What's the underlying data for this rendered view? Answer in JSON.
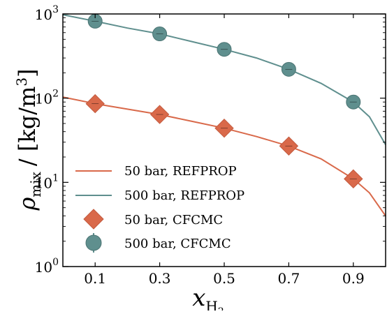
{
  "chart_data": {
    "type": "line",
    "x_axis": {
      "label": "x",
      "label_sub": "H",
      "label_sub_digit": "2",
      "range": [
        0.0,
        1.0
      ],
      "ticks": [
        0.1,
        0.3,
        0.5,
        0.7,
        0.9
      ],
      "tick_labels": [
        "0.1",
        "0.3",
        "0.5",
        "0.7",
        "0.9"
      ]
    },
    "y_axis": {
      "label_main": "ρ",
      "label_sub": "mix",
      "label_units": "/   [kg/m",
      "label_units_exp": "3",
      "label_units_close": "]",
      "scale": "log",
      "range": [
        1,
        1000
      ],
      "ticks": [
        1,
        10,
        100,
        1000
      ],
      "tick_bases": [
        "10",
        "10",
        "10",
        "10"
      ],
      "tick_exponents": [
        "0",
        "1",
        "2",
        "3"
      ]
    },
    "series": [
      {
        "name": "50 bar, REFPROP",
        "kind": "line",
        "color": "#d9694a",
        "x": [
          0.0,
          0.1,
          0.2,
          0.3,
          0.4,
          0.5,
          0.6,
          0.7,
          0.8,
          0.9,
          0.95,
          1.0
        ],
        "y": [
          103,
          86,
          74,
          64,
          53,
          44,
          35,
          27,
          19,
          11,
          7.5,
          4
        ]
      },
      {
        "name": "500 bar, REFPROP",
        "kind": "line",
        "color": "#5f8f8e",
        "x": [
          0.0,
          0.1,
          0.2,
          0.3,
          0.4,
          0.5,
          0.6,
          0.7,
          0.8,
          0.9,
          0.95,
          1.0
        ],
        "y": [
          980,
          820,
          680,
          580,
          470,
          380,
          300,
          220,
          150,
          90,
          60,
          28
        ]
      },
      {
        "name": "50 bar, CFCMC",
        "kind": "marker",
        "marker": "diamond",
        "color": "#d9694a",
        "x": [
          0.1,
          0.3,
          0.5,
          0.7,
          0.9
        ],
        "y": [
          86,
          64,
          44,
          27,
          11
        ]
      },
      {
        "name": "500 bar, CFCMC",
        "kind": "marker",
        "marker": "circle",
        "color": "#5f8f8e",
        "x": [
          0.1,
          0.3,
          0.5,
          0.7,
          0.9
        ],
        "y": [
          820,
          580,
          380,
          220,
          90
        ]
      }
    ],
    "legend": {
      "placement": "lower-left",
      "entries": [
        "50 bar, REFPROP",
        "500 bar, REFPROP",
        "50 bar, CFCMC",
        "500 bar, CFCMC"
      ]
    },
    "grid": false
  }
}
